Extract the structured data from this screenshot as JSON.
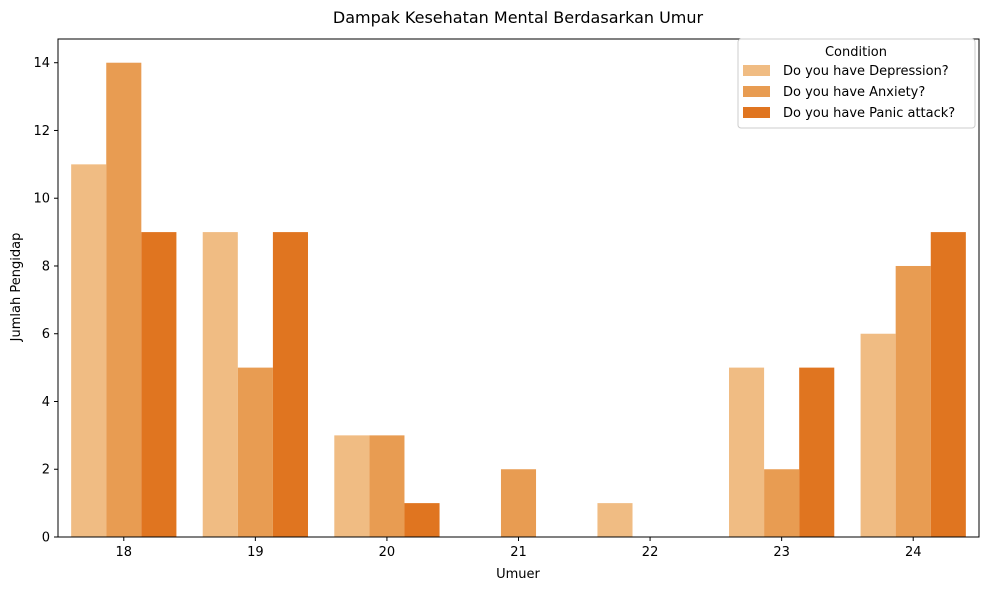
{
  "chart_data": {
    "type": "bar",
    "title": "Dampak Kesehatan Mental Berdasarkan Umur",
    "xlabel": "Umuer",
    "ylabel": "Jumlah Pengidap",
    "categories": [
      "18",
      "19",
      "20",
      "21",
      "22",
      "23",
      "24"
    ],
    "series": [
      {
        "name": "Do you have Depression?",
        "color": "#f0bc83",
        "values": [
          11,
          9,
          3,
          0,
          1,
          5,
          6
        ]
      },
      {
        "name": "Do you have Anxiety?",
        "color": "#e89c52",
        "values": [
          14,
          5,
          3,
          2,
          0,
          2,
          8
        ]
      },
      {
        "name": "Do you have Panic attack?",
        "color": "#e07520",
        "values": [
          9,
          9,
          1,
          0,
          0,
          5,
          9
        ]
      }
    ],
    "ylim": [
      0,
      14.7
    ],
    "yticks": [
      0,
      2,
      4,
      6,
      8,
      10,
      12,
      14
    ],
    "grid": false,
    "legend": {
      "title": "Condition",
      "placement": "top-right"
    }
  }
}
